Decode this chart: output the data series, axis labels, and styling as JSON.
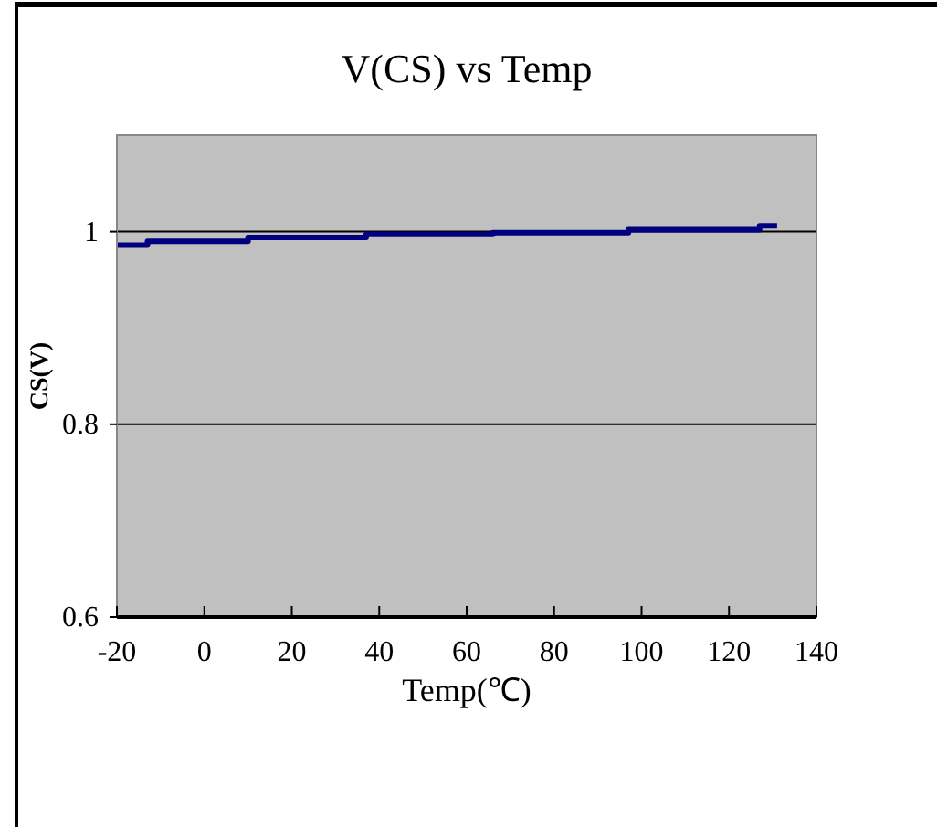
{
  "chart_data": {
    "type": "step",
    "title": "V(CS) vs Temp",
    "xlabel": "Temp(℃)",
    "ylabel": "CS(V)",
    "x": [
      -20,
      -13,
      10,
      37,
      66,
      97,
      127,
      131
    ],
    "series": [
      {
        "color": "#000080",
        "values": [
          0.986,
          0.99,
          0.994,
          0.997,
          0.999,
          1.002,
          1.006,
          1.006
        ]
      }
    ],
    "xlim": [
      -20,
      140
    ],
    "xticks": [
      -20,
      0,
      20,
      40,
      60,
      80,
      100,
      120,
      140
    ],
    "ylim": [
      0.6,
      1.1
    ],
    "yticks": [
      {
        "value": 0.6,
        "label": "0.6"
      },
      {
        "value": 0.8,
        "label": "0.8"
      },
      {
        "value": 1,
        "label": "1"
      }
    ],
    "grid": "y"
  }
}
